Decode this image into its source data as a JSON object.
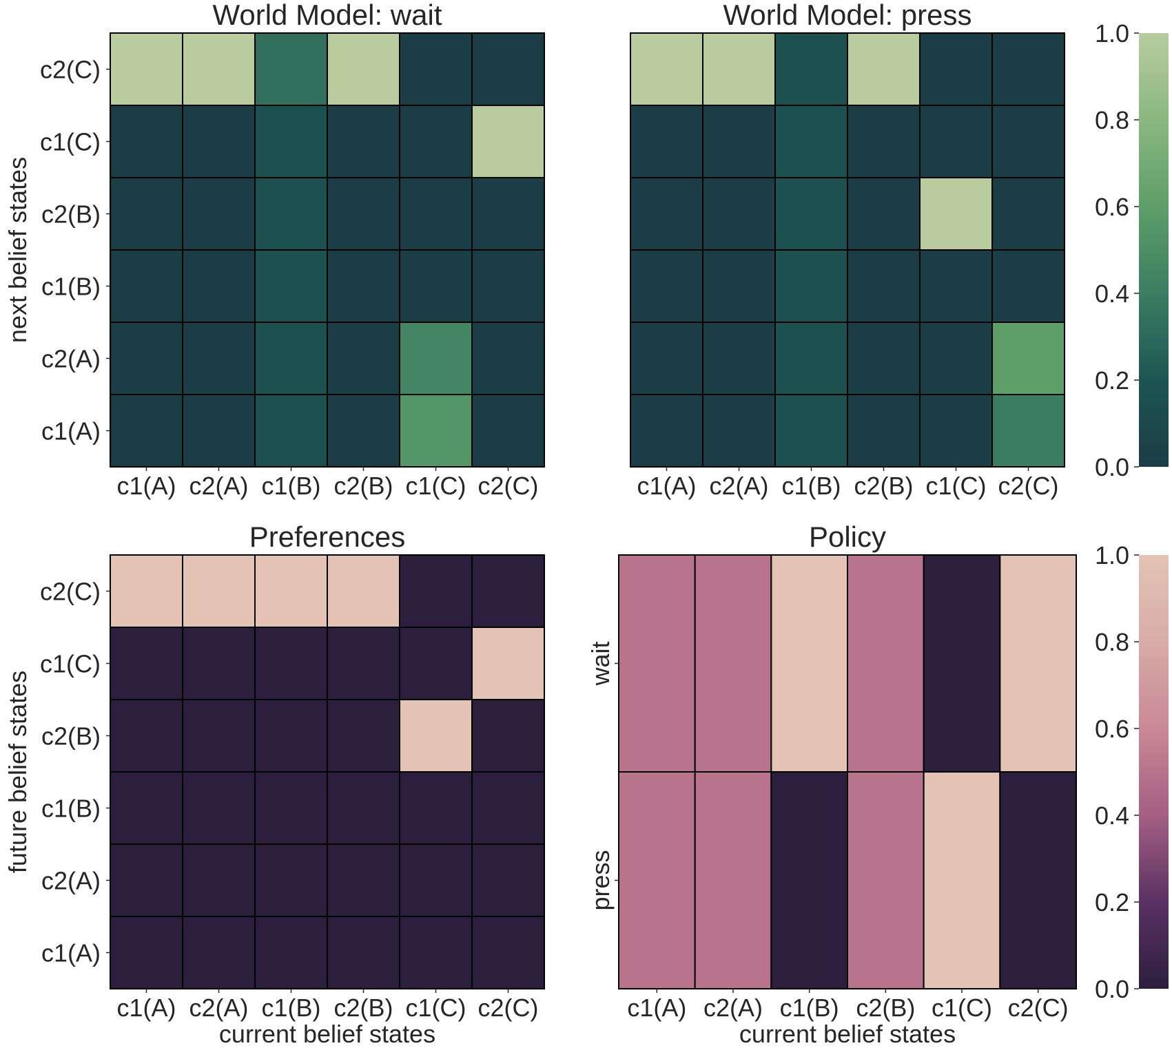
{
  "chart_data": [
    {
      "type": "heatmap",
      "title": "World Model: wait",
      "xlabel": "",
      "ylabel": "next belief states",
      "x_categories": [
        "c1(A)",
        "c2(A)",
        "c1(B)",
        "c2(B)",
        "c1(C)",
        "c2(C)"
      ],
      "y_categories_top_to_bottom": [
        "c2(C)",
        "c1(C)",
        "c2(B)",
        "c1(B)",
        "c2(A)",
        "c1(A)"
      ],
      "values": [
        [
          1.0,
          1.0,
          0.33,
          1.0,
          0.0,
          0.0
        ],
        [
          0.0,
          0.0,
          0.17,
          0.0,
          0.0,
          1.0
        ],
        [
          0.0,
          0.0,
          0.17,
          0.0,
          0.0,
          0.0
        ],
        [
          0.0,
          0.0,
          0.17,
          0.0,
          0.0,
          0.0
        ],
        [
          0.0,
          0.0,
          0.17,
          0.0,
          0.45,
          0.0
        ],
        [
          0.0,
          0.0,
          0.17,
          0.0,
          0.55,
          0.0
        ]
      ],
      "colormap": "cubehelix-green",
      "vmin": 0,
      "vmax": 1
    },
    {
      "type": "heatmap",
      "title": "World Model: press",
      "xlabel": "",
      "ylabel": "",
      "x_categories": [
        "c1(A)",
        "c2(A)",
        "c1(B)",
        "c2(B)",
        "c1(C)",
        "c2(C)"
      ],
      "y_categories_top_to_bottom": [],
      "values": [
        [
          1.0,
          1.0,
          0.17,
          1.0,
          0.0,
          0.0
        ],
        [
          0.0,
          0.0,
          0.17,
          0.0,
          0.0,
          0.0
        ],
        [
          0.0,
          0.0,
          0.17,
          0.0,
          1.0,
          0.0
        ],
        [
          0.0,
          0.0,
          0.17,
          0.0,
          0.0,
          0.0
        ],
        [
          0.0,
          0.0,
          0.17,
          0.0,
          0.0,
          0.6
        ],
        [
          0.0,
          0.0,
          0.17,
          0.0,
          0.0,
          0.4
        ]
      ],
      "colormap": "cubehelix-green",
      "vmin": 0,
      "vmax": 1
    },
    {
      "type": "heatmap",
      "title": "Preferences",
      "xlabel": "current belief states",
      "ylabel": "future belief states",
      "x_categories": [
        "c1(A)",
        "c2(A)",
        "c1(B)",
        "c2(B)",
        "c1(C)",
        "c2(C)"
      ],
      "y_categories_top_to_bottom": [
        "c2(C)",
        "c1(C)",
        "c2(B)",
        "c1(B)",
        "c2(A)",
        "c1(A)"
      ],
      "values": [
        [
          1,
          1,
          1,
          1,
          0,
          0
        ],
        [
          0,
          0,
          0,
          0,
          0,
          1
        ],
        [
          0,
          0,
          0,
          0,
          1,
          0
        ],
        [
          0,
          0,
          0,
          0,
          0,
          0
        ],
        [
          0,
          0,
          0,
          0,
          0,
          0
        ],
        [
          0,
          0,
          0,
          0,
          0,
          0
        ]
      ],
      "colormap": "cubehelix-pink",
      "vmin": 0,
      "vmax": 1
    },
    {
      "type": "heatmap",
      "title": "Policy",
      "xlabel": "current belief states",
      "ylabel": "",
      "x_categories": [
        "c1(A)",
        "c2(A)",
        "c1(B)",
        "c2(B)",
        "c1(C)",
        "c2(C)"
      ],
      "y_categories_top_to_bottom": [
        "wait",
        "press"
      ],
      "values": [
        [
          0.5,
          0.5,
          1.0,
          0.5,
          0.0,
          1.0
        ],
        [
          0.5,
          0.5,
          0.0,
          0.5,
          1.0,
          0.0
        ]
      ],
      "colormap": "cubehelix-pink",
      "vmin": 0,
      "vmax": 1
    }
  ],
  "colorbars": [
    {
      "colormap": "cubehelix-green",
      "ticks": [
        "0.0",
        "0.2",
        "0.4",
        "0.6",
        "0.8",
        "1.0"
      ]
    },
    {
      "colormap": "cubehelix-pink",
      "ticks": [
        "0.0",
        "0.2",
        "0.4",
        "0.6",
        "0.8",
        "1.0"
      ]
    }
  ],
  "colormaps": {
    "cubehelix-green": [
      "#1b3d45",
      "#1d5552",
      "#3b7d62",
      "#5e9e69",
      "#8ab87f",
      "#b8cc9e"
    ],
    "cubehelix-pink": [
      "#2c1e3d",
      "#5b3163",
      "#a45f82",
      "#c98895",
      "#d8aca8",
      "#e4c3b5"
    ]
  }
}
